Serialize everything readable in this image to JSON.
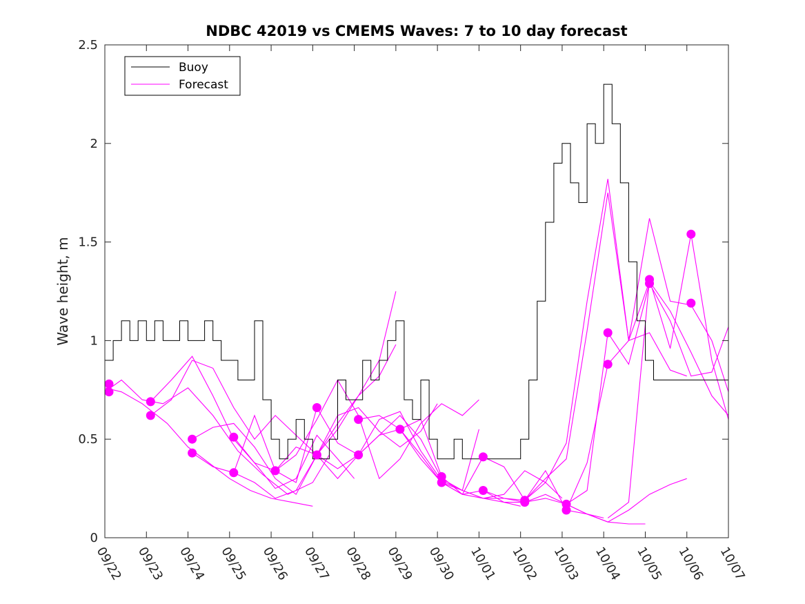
{
  "chart_data": {
    "type": "line",
    "title": "NDBC 42019 vs CMEMS Waves: 7 to 10 day forecast",
    "xlabel": "",
    "ylabel": "Wave height, m",
    "xlim": [
      0,
      15
    ],
    "ylim": [
      0,
      2.5
    ],
    "x_ticks": [
      0,
      1,
      2,
      3,
      4,
      5,
      6,
      7,
      8,
      9,
      10,
      11,
      12,
      13,
      14,
      15
    ],
    "x_tick_labels": [
      "09/22",
      "09/23",
      "09/24",
      "09/25",
      "09/26",
      "09/27",
      "09/28",
      "09/29",
      "09/30",
      "10/01",
      "10/02",
      "10/03",
      "10/04",
      "10/05",
      "10/06",
      "10/07"
    ],
    "y_ticks": [
      0,
      0.5,
      1,
      1.5,
      2,
      2.5
    ],
    "y_tick_labels": [
      "0",
      "0.5",
      "1",
      "1.5",
      "2",
      "2.5"
    ],
    "legend": {
      "position": "top-left",
      "entries": [
        {
          "label": "Buoy",
          "color": "#000000"
        },
        {
          "label": "Forecast",
          "color": "#ff00ff"
        }
      ]
    },
    "colors": {
      "buoy": "#000000",
      "forecast": "#ff00ff"
    },
    "buoy": {
      "name": "Buoy",
      "x": [
        0,
        0.2,
        0.4,
        0.6,
        0.8,
        1,
        1.2,
        1.4,
        1.6,
        1.8,
        2,
        2.2,
        2.4,
        2.6,
        2.8,
        3,
        3.2,
        3.4,
        3.6,
        3.8,
        4,
        4.2,
        4.4,
        4.6,
        4.8,
        5,
        5.2,
        5.4,
        5.6,
        5.8,
        6,
        6.2,
        6.4,
        6.6,
        6.8,
        7,
        7.2,
        7.4,
        7.6,
        7.8,
        8,
        8.2,
        8.4,
        8.6,
        8.8,
        9,
        9.2,
        9.4,
        9.6,
        9.8,
        10,
        10.2,
        10.4,
        10.6,
        10.8,
        11,
        11.2,
        11.4,
        11.6,
        11.8,
        12,
        12.2,
        12.4,
        12.6,
        12.8,
        13,
        13.2,
        13.4,
        13.6,
        13.8,
        14,
        14.2,
        14.4,
        14.6,
        14.8,
        15
      ],
      "y": [
        0.9,
        1.0,
        1.1,
        1.0,
        1.1,
        1.0,
        1.1,
        1.0,
        1.0,
        1.1,
        1.0,
        1.0,
        1.1,
        1.0,
        0.9,
        0.9,
        0.8,
        0.8,
        1.1,
        0.7,
        0.5,
        0.4,
        0.5,
        0.6,
        0.5,
        0.4,
        0.4,
        0.5,
        0.8,
        0.7,
        0.7,
        0.9,
        0.8,
        0.9,
        1.0,
        1.1,
        0.7,
        0.6,
        0.8,
        0.5,
        0.4,
        0.4,
        0.5,
        0.4,
        0.4,
        0.4,
        0.4,
        0.4,
        0.4,
        0.4,
        0.5,
        0.8,
        1.2,
        1.6,
        1.9,
        2.0,
        1.8,
        1.7,
        2.1,
        2.0,
        2.3,
        2.1,
        1.8,
        1.4,
        1.1,
        0.9,
        0.8,
        0.8,
        0.8,
        0.8,
        0.8,
        0.8,
        0.8,
        0.8,
        0.8,
        0.8
      ]
    },
    "forecast_series": [
      {
        "name": "Forecast",
        "x": [
          0,
          0.4,
          0.9,
          1.5,
          2.0,
          2.5,
          3.0,
          3.5,
          4.0,
          4.5,
          5.0
        ],
        "y": [
          0.76,
          0.74,
          0.68,
          0.58,
          0.46,
          0.38,
          0.3,
          0.24,
          0.2,
          0.18,
          0.16
        ]
      },
      {
        "name": "Forecast",
        "x": [
          0,
          0.4,
          0.9,
          1.4,
          2.0,
          2.6,
          3.2,
          3.8,
          4.4,
          5.0,
          5.4
        ],
        "y": [
          0.74,
          0.8,
          0.7,
          0.68,
          0.76,
          0.62,
          0.44,
          0.32,
          0.22,
          0.28,
          0.42
        ]
      },
      {
        "name": "Forecast",
        "x": [
          1.1,
          1.6,
          2.1,
          2.6,
          3.1,
          3.6,
          4.1,
          4.6,
          5.1,
          5.6,
          6.0
        ],
        "y": [
          0.69,
          0.8,
          0.92,
          0.72,
          0.5,
          0.38,
          0.25,
          0.3,
          0.52,
          0.4,
          0.3
        ]
      },
      {
        "name": "Forecast",
        "x": [
          1.1,
          1.6,
          2.1,
          2.6,
          3.1,
          3.6,
          4.1,
          4.6,
          5.1,
          5.6,
          6.1,
          6.6,
          7.0
        ],
        "y": [
          0.62,
          0.7,
          0.9,
          0.86,
          0.66,
          0.5,
          0.62,
          0.52,
          0.42,
          0.58,
          0.72,
          0.82,
          0.98
        ]
      },
      {
        "name": "Forecast",
        "x": [
          2.1,
          2.6,
          3.1,
          3.6,
          4.1,
          4.6,
          5.1,
          5.6,
          6.1,
          6.6,
          7.0
        ],
        "y": [
          0.5,
          0.56,
          0.58,
          0.46,
          0.3,
          0.22,
          0.42,
          0.55,
          0.72,
          0.9,
          1.25
        ]
      },
      {
        "name": "Forecast",
        "x": [
          2.1,
          2.6,
          3.1,
          3.6,
          4.1,
          4.6,
          5.1,
          5.6,
          6.1,
          6.6,
          7.1,
          7.6,
          8.0
        ],
        "y": [
          0.43,
          0.36,
          0.33,
          0.62,
          0.34,
          0.46,
          0.42,
          0.62,
          0.66,
          0.54,
          0.46,
          0.54,
          0.68
        ]
      },
      {
        "name": "Forecast",
        "x": [
          3.1,
          3.6,
          4.1,
          4.6,
          5.1,
          5.6,
          6.1,
          6.6,
          7.1,
          7.6,
          8.1,
          8.6,
          9.0
        ],
        "y": [
          0.51,
          0.38,
          0.34,
          0.42,
          0.6,
          0.8,
          0.62,
          0.3,
          0.4,
          0.58,
          0.68,
          0.62,
          0.7
        ]
      },
      {
        "name": "Forecast",
        "x": [
          3.1,
          3.6,
          4.1,
          4.6,
          5.1,
          5.6,
          6.1,
          6.6,
          7.1,
          7.6,
          8.1,
          8.6,
          9.0
        ],
        "y": [
          0.33,
          0.28,
          0.2,
          0.24,
          0.42,
          0.3,
          0.42,
          0.52,
          0.62,
          0.5,
          0.3,
          0.24,
          0.55
        ]
      },
      {
        "name": "Forecast",
        "x": [
          4.1,
          4.6,
          5.1,
          5.6,
          6.1,
          6.6,
          7.1,
          7.6,
          8.1,
          8.6,
          9.1,
          9.6,
          10.0
        ],
        "y": [
          0.34,
          0.28,
          0.66,
          0.48,
          0.42,
          0.6,
          0.64,
          0.44,
          0.29,
          0.24,
          0.2,
          0.18,
          0.16
        ]
      },
      {
        "name": "Forecast",
        "x": [
          5.1,
          5.6,
          6.1,
          6.6,
          7.1,
          7.6,
          8.1,
          8.6,
          9.1,
          9.6,
          10.1,
          10.6,
          11.0
        ],
        "y": [
          0.42,
          0.35,
          0.42,
          0.52,
          0.55,
          0.42,
          0.28,
          0.22,
          0.2,
          0.22,
          0.34,
          0.28,
          0.2
        ]
      },
      {
        "name": "Forecast",
        "x": [
          6.1,
          6.6,
          7.1,
          7.6,
          8.1,
          8.6,
          9.1,
          9.6,
          10.1,
          10.6,
          11.1,
          11.6,
          12.0
        ],
        "y": [
          0.6,
          0.62,
          0.55,
          0.6,
          0.31,
          0.22,
          0.24,
          0.2,
          0.18,
          0.2,
          0.17,
          0.12,
          0.1
        ]
      },
      {
        "name": "Forecast",
        "x": [
          7.1,
          7.6,
          8.1,
          8.6,
          9.1,
          9.6,
          10.1,
          10.6,
          11.1,
          11.6,
          12.1,
          12.6,
          13.0
        ],
        "y": [
          0.55,
          0.4,
          0.28,
          0.22,
          0.41,
          0.36,
          0.19,
          0.34,
          0.14,
          0.12,
          0.08,
          0.07,
          0.07
        ]
      },
      {
        "name": "Forecast",
        "x": [
          8.1,
          8.6,
          9.1,
          9.6,
          10.1,
          10.6,
          11.1,
          11.6,
          12.1,
          12.6,
          13.1,
          13.6,
          14.0
        ],
        "y": [
          0.28,
          0.24,
          0.2,
          0.2,
          0.19,
          0.28,
          0.48,
          1.2,
          1.82,
          1.0,
          1.04,
          0.85,
          0.82
        ]
      },
      {
        "name": "Forecast",
        "x": [
          9.1,
          9.6,
          10.1,
          10.6,
          11.1,
          11.6,
          12.1,
          12.6,
          13.1,
          13.6,
          14.0
        ],
        "y": [
          0.24,
          0.18,
          0.18,
          0.22,
          0.17,
          0.12,
          0.08,
          0.14,
          0.22,
          0.27,
          0.3
        ]
      },
      {
        "name": "Forecast",
        "x": [
          10.1,
          10.6,
          11.1,
          11.6,
          12.1,
          12.6,
          13.1,
          13.6,
          14.1,
          14.6,
          15.0
        ],
        "y": [
          0.19,
          0.3,
          0.4,
          1.05,
          1.75,
          1.0,
          1.3,
          1.15,
          0.94,
          0.72,
          0.62
        ]
      },
      {
        "name": "Forecast",
        "x": [
          11.1,
          11.6,
          12.1,
          12.6,
          13.1,
          13.6,
          14.1,
          14.6,
          15.0
        ],
        "y": [
          0.17,
          0.24,
          1.04,
          0.88,
          1.29,
          1.1,
          0.82,
          0.84,
          1.07
        ]
      },
      {
        "name": "Forecast",
        "x": [
          11.1,
          11.6,
          12.1,
          12.6,
          13.1,
          13.6,
          14.1,
          14.6,
          15.0
        ],
        "y": [
          0.14,
          0.38,
          0.88,
          1.0,
          1.62,
          1.2,
          1.18,
          1.0,
          0.74
        ]
      },
      {
        "name": "Forecast",
        "x": [
          12.1,
          12.6,
          13.1,
          13.6,
          14.1,
          14.6,
          15.0
        ],
        "y": [
          0.1,
          0.18,
          1.31,
          0.96,
          1.54,
          0.9,
          0.6
        ]
      }
    ],
    "markers": {
      "x": [
        0.1,
        0.1,
        1.1,
        1.1,
        2.1,
        2.1,
        3.1,
        3.1,
        4.1,
        5.1,
        5.1,
        6.1,
        6.1,
        7.1,
        8.1,
        8.1,
        9.1,
        9.1,
        10.1,
        10.1,
        11.1,
        11.1,
        12.1,
        12.1,
        13.1,
        13.1,
        14.1,
        14.1
      ],
      "y": [
        0.78,
        0.74,
        0.69,
        0.62,
        0.5,
        0.43,
        0.51,
        0.33,
        0.34,
        0.66,
        0.42,
        0.6,
        0.42,
        0.55,
        0.31,
        0.28,
        0.41,
        0.24,
        0.19,
        0.18,
        0.17,
        0.14,
        1.04,
        0.88,
        1.31,
        1.29,
        1.54,
        1.19
      ]
    }
  }
}
